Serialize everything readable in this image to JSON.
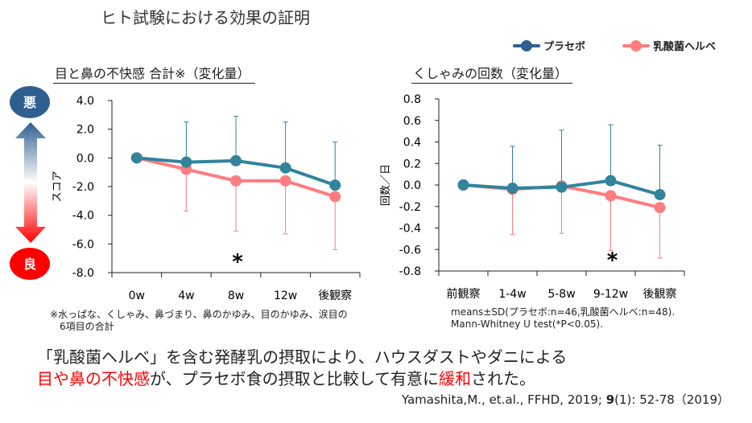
{
  "title": "ヒト試験における効果の証明",
  "legend": [
    {
      "name": "プラセボ",
      "color": "#2f5f8f"
    },
    {
      "name": "乳酸菌ヘルベ",
      "color": "#ff7c80"
    }
  ],
  "colors": {
    "placebo": "#31849b",
    "helve": "#ff7c80",
    "bad": "#2f5f8f",
    "good": "#ff0000"
  },
  "indicator": {
    "bad": "悪",
    "good": "良"
  },
  "chart_data": [
    {
      "type": "line",
      "title": "目と鼻の不快感 合計※（変化量）",
      "ylabel": "スコア",
      "ylim": [
        -8,
        4
      ],
      "yticks": [
        "4.0",
        "2.0",
        "0.0",
        "-2.0",
        "-4.0",
        "-6.0",
        "-8.0"
      ],
      "categories": [
        "0w",
        "4w",
        "8w",
        "12w",
        "後観察"
      ],
      "series": [
        {
          "name": "プラセボ",
          "values": [
            0,
            -0.3,
            -0.2,
            -0.7,
            -1.9
          ],
          "sd_upper": [
            null,
            2.5,
            2.9,
            2.5,
            1.1
          ]
        },
        {
          "name": "乳酸菌ヘルベ",
          "values": [
            0,
            -0.8,
            -1.6,
            -1.6,
            -2.7
          ],
          "sd_lower": [
            null,
            -3.7,
            -5.1,
            -5.3,
            -6.4
          ]
        }
      ],
      "annotations": [
        {
          "category": "8w",
          "text": "*"
        }
      ],
      "footnote": [
        "※水っぱな、くしゃみ、鼻づまり、鼻のかゆみ、目のかゆみ、涙目の",
        "6項目の合計"
      ]
    },
    {
      "type": "line",
      "title": "くしゃみの回数（変化量）",
      "ylabel": "回数／日",
      "ylim": [
        -0.8,
        0.8
      ],
      "yticks": [
        "0.8",
        "0.6",
        "0.4",
        "0.2",
        "0.0",
        "-0.2",
        "-0.4",
        "-0.6",
        "-0.8"
      ],
      "categories": [
        "前観察",
        "1-4w",
        "5-8w",
        "9-12w",
        "後観察"
      ],
      "series": [
        {
          "name": "プラセボ",
          "values": [
            0,
            -0.03,
            -0.02,
            0.04,
            -0.09
          ],
          "sd_upper": [
            null,
            0.36,
            0.51,
            0.56,
            0.37
          ]
        },
        {
          "name": "乳酸菌ヘルベ",
          "values": [
            0,
            -0.04,
            -0.01,
            -0.1,
            -0.21
          ],
          "sd_lower": [
            null,
            -0.46,
            -0.45,
            -0.61,
            -0.68
          ]
        }
      ],
      "annotations": [
        {
          "category": "9-12w",
          "text": "*"
        }
      ],
      "footnote": [
        "means±SD(プラセボ:n=46,乳酸菌ヘルベ:n=48).",
        "Mann-Whitney U test(*P<0.05)."
      ]
    }
  ],
  "conclusion": {
    "line1": "「乳酸菌ヘルベ」を含む発酵乳の摂取により、ハウスダストやダニによる",
    "line2_red1": "目や鼻の不快感",
    "line2_mid": "が、プラセボ食の摂取と比較して有意に",
    "line2_red2": "緩和",
    "line2_end": "された。"
  },
  "citation": {
    "pre": "Yamashita,M., et.al., FFHD, 2019; ",
    "vol": "9",
    "post": "(1): 52-78（2019）"
  }
}
